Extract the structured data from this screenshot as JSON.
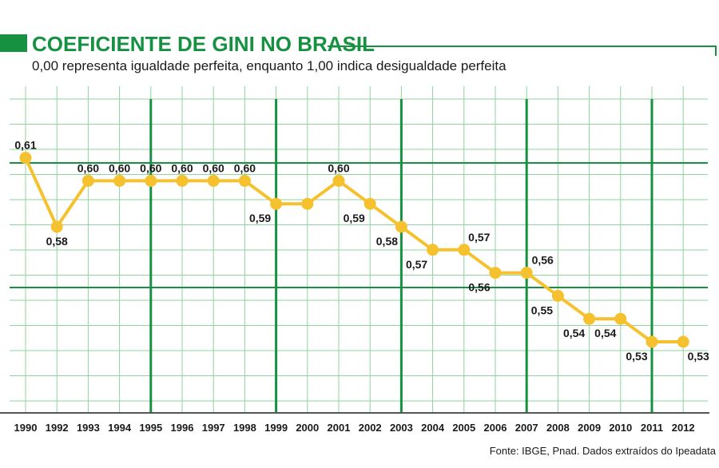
{
  "chart_data": {
    "type": "line",
    "title": "COEFICIENTE DE GINI NO BRASIL",
    "subtitle": "0,00 representa igualdade perfeita, enquanto 1,00 indica desigualdade perfeita",
    "source": "Fonte: IBGE, Pnad. Dados extraídos do Ipeadata",
    "categories": [
      "1990",
      "1992",
      "1993",
      "1994",
      "1995",
      "1996",
      "1997",
      "1998",
      "1999",
      "2000",
      "2001",
      "2002",
      "2003",
      "2004",
      "2005",
      "2006",
      "2007",
      "2008",
      "2009",
      "2010",
      "2011",
      "2012"
    ],
    "values": [
      0.61,
      0.58,
      0.6,
      0.6,
      0.6,
      0.6,
      0.6,
      0.6,
      0.59,
      0.59,
      0.6,
      0.59,
      0.58,
      0.57,
      0.57,
      0.56,
      0.56,
      0.55,
      0.54,
      0.54,
      0.53,
      0.53
    ],
    "labels": [
      "0,61",
      "0,58",
      "0,60",
      "0,60",
      "0,60",
      "0,60",
      "0,60",
      "0,60",
      "0,59",
      "",
      "0,60",
      "0,59",
      "0,58",
      "0,57",
      "0,57",
      "0,56",
      "0,56",
      "0,55",
      "0,54",
      "0,54",
      "0,53",
      "0,53"
    ],
    "xlabel": "",
    "ylabel": "",
    "ylim": [
      0.505,
      0.63
    ],
    "grid": true,
    "legend": "none",
    "colors": {
      "line": "#f6c12f",
      "grid_minor": "#8fd39d",
      "grid_major": "#169142",
      "accent": "#169142",
      "text": "#1a1a1a"
    }
  }
}
